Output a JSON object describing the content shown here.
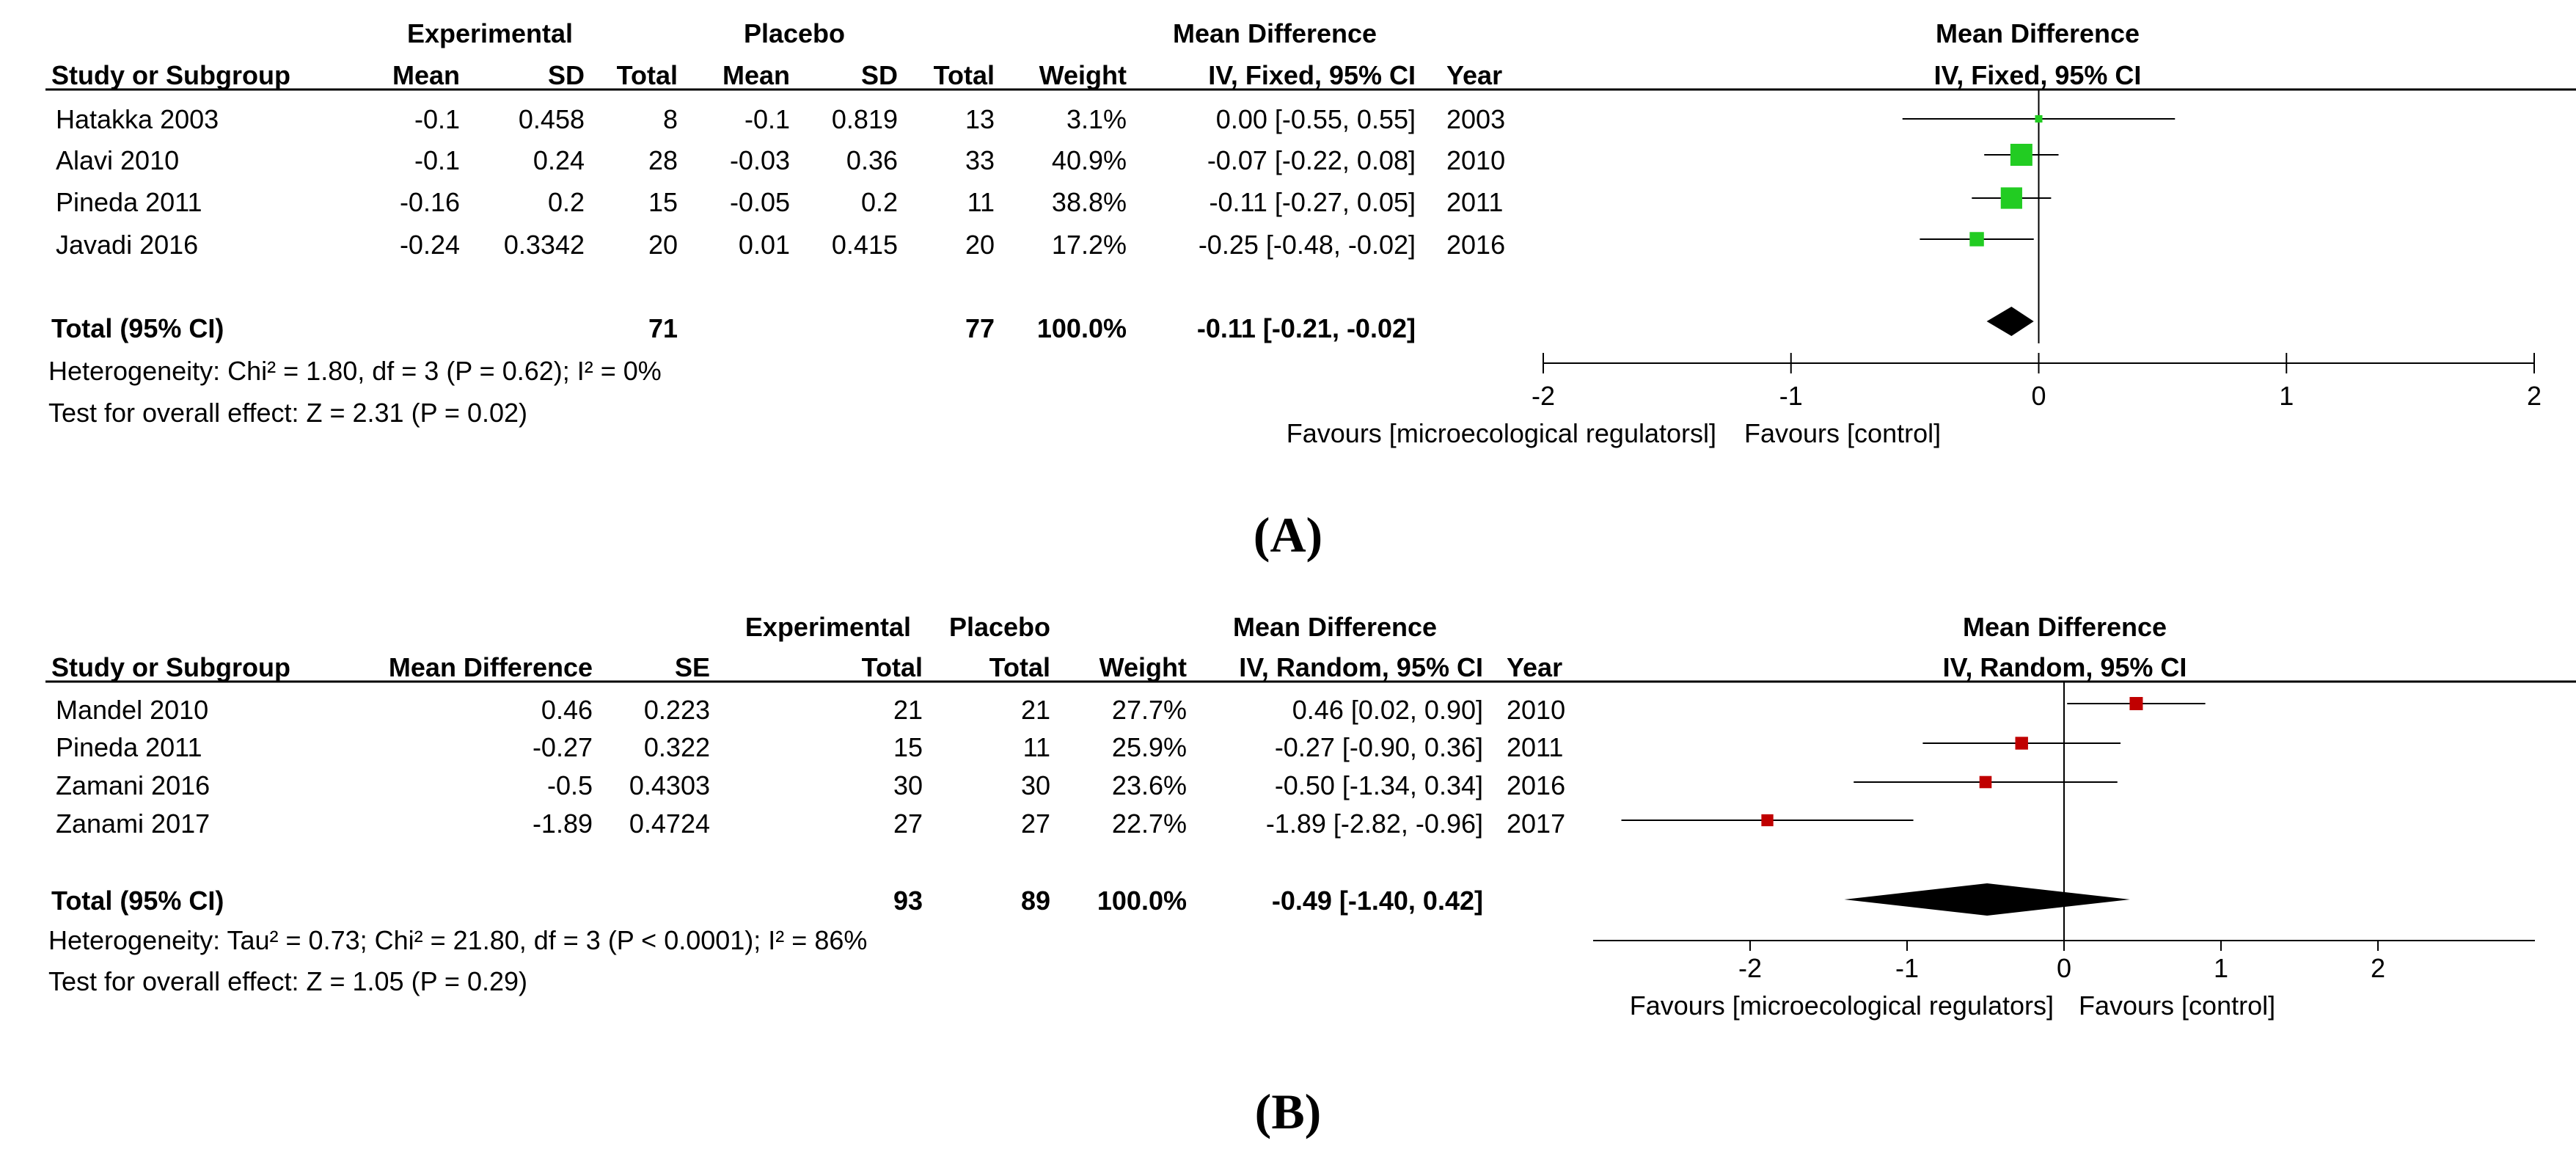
{
  "panel_a": {
    "label": "(A)",
    "group_header_experimental": "Experimental",
    "group_header_placebo": "Placebo",
    "group_header_md": "Mean Difference",
    "headers": [
      "Study or Subgroup",
      "Mean",
      "SD",
      "Total",
      "Mean",
      "SD",
      "Total",
      "Weight",
      "IV, Fixed, 95% CI",
      "Year"
    ],
    "rows": [
      {
        "study": "Hatakka 2003",
        "exp_mean": "-0.1",
        "exp_sd": "0.458",
        "exp_total": "8",
        "pla_mean": "-0.1",
        "pla_sd": "0.819",
        "pla_total": "13",
        "weight": "3.1%",
        "ci": "0.00 [-0.55, 0.55]",
        "year": "2003"
      },
      {
        "study": "Alavi 2010",
        "exp_mean": "-0.1",
        "exp_sd": "0.24",
        "exp_total": "28",
        "pla_mean": "-0.03",
        "pla_sd": "0.36",
        "pla_total": "33",
        "weight": "40.9%",
        "ci": "-0.07 [-0.22, 0.08]",
        "year": "2010"
      },
      {
        "study": "Pineda 2011",
        "exp_mean": "-0.16",
        "exp_sd": "0.2",
        "exp_total": "15",
        "pla_mean": "-0.05",
        "pla_sd": "0.2",
        "pla_total": "11",
        "weight": "38.8%",
        "ci": "-0.11 [-0.27, 0.05]",
        "year": "2011"
      },
      {
        "study": "Javadi 2016",
        "exp_mean": "-0.24",
        "exp_sd": "0.3342",
        "exp_total": "20",
        "pla_mean": "0.01",
        "pla_sd": "0.415",
        "pla_total": "20",
        "weight": "17.2%",
        "ci": "-0.25 [-0.48, -0.02]",
        "year": "2016"
      }
    ],
    "total": {
      "label": "Total (95% CI)",
      "exp_total": "71",
      "pla_total": "77",
      "weight": "100.0%",
      "ci": "-0.11 [-0.21, -0.02]"
    },
    "heterogeneity": "Heterogeneity: Chi² = 1.80, df = 3 (P = 0.62); I² = 0%",
    "overall_effect": "Test for overall effect: Z = 2.31 (P = 0.02)",
    "plot_title": "Mean Difference",
    "plot_subtitle": "IV, Fixed, 95% CI",
    "favours_left": "Favours [microecological regulatorsl]",
    "favours_right": "Favours [control]"
  },
  "panel_b": {
    "label": "(B)",
    "group_header_experimental": "Experimental",
    "group_header_placebo": "Placebo",
    "group_header_md": "Mean Difference",
    "headers": [
      "Study or Subgroup",
      "Mean Difference",
      "SE",
      "Total",
      "Total",
      "Weight",
      "IV, Random, 95% CI",
      "Year"
    ],
    "rows": [
      {
        "study": "Mandel 2010",
        "md": "0.46",
        "se": "0.223",
        "exp_total": "21",
        "pla_total": "21",
        "weight": "27.7%",
        "ci": "0.46 [0.02, 0.90]",
        "year": "2010"
      },
      {
        "study": "Pineda 2011",
        "md": "-0.27",
        "se": "0.322",
        "exp_total": "15",
        "pla_total": "11",
        "weight": "25.9%",
        "ci": "-0.27 [-0.90, 0.36]",
        "year": "2011"
      },
      {
        "study": "Zamani 2016",
        "md": "-0.5",
        "se": "0.4303",
        "exp_total": "30",
        "pla_total": "30",
        "weight": "23.6%",
        "ci": "-0.50 [-1.34, 0.34]",
        "year": "2016"
      },
      {
        "study": "Zanami 2017",
        "md": "-1.89",
        "se": "0.4724",
        "exp_total": "27",
        "pla_total": "27",
        "weight": "22.7%",
        "ci": "-1.89 [-2.82, -0.96]",
        "year": "2017"
      }
    ],
    "total": {
      "label": "Total (95% CI)",
      "exp_total": "93",
      "pla_total": "89",
      "weight": "100.0%",
      "ci": "-0.49 [-1.40, 0.42]"
    },
    "heterogeneity": "Heterogeneity: Tau² = 0.73; Chi² = 21.80, df = 3 (P < 0.0001); I² = 86%",
    "overall_effect": "Test for overall effect: Z = 1.05 (P = 0.29)",
    "plot_title": "Mean Difference",
    "plot_subtitle": "IV, Random, 95% CI",
    "favours_left": "Favours [microecological regulators]",
    "favours_right": "Favours [control]"
  },
  "chart_data": [
    {
      "type": "forest",
      "panel": "A",
      "title": "Mean Difference",
      "subtitle": "IV, Fixed, 95% CI",
      "xlim": [
        -2,
        2
      ],
      "ticks": [
        -2,
        -1,
        0,
        1,
        2
      ],
      "tick_labels": [
        "-2",
        "-1",
        "0",
        "1",
        "2"
      ],
      "marker_color": "#22cc22",
      "studies": [
        {
          "name": "Hatakka 2003",
          "md": 0.0,
          "lo": -0.55,
          "hi": 0.55,
          "weight": 3.1
        },
        {
          "name": "Alavi 2010",
          "md": -0.07,
          "lo": -0.22,
          "hi": 0.08,
          "weight": 40.9
        },
        {
          "name": "Pineda 2011",
          "md": -0.11,
          "lo": -0.27,
          "hi": 0.05,
          "weight": 38.8
        },
        {
          "name": "Javadi 2016",
          "md": -0.25,
          "lo": -0.48,
          "hi": -0.02,
          "weight": 17.2
        }
      ],
      "pooled": {
        "md": -0.11,
        "lo": -0.21,
        "hi": -0.02
      }
    },
    {
      "type": "forest",
      "panel": "B",
      "title": "Mean Difference",
      "subtitle": "IV, Random, 95% CI",
      "xlim": [
        -3,
        3
      ],
      "ticks": [
        -2,
        -1,
        0,
        1,
        2
      ],
      "tick_labels": [
        "-2",
        "-1",
        "0",
        "1",
        "2"
      ],
      "marker_color": "#c00000",
      "studies": [
        {
          "name": "Mandel 2010",
          "md": 0.46,
          "lo": 0.02,
          "hi": 0.9,
          "weight": 27.7
        },
        {
          "name": "Pineda 2011",
          "md": -0.27,
          "lo": -0.9,
          "hi": 0.36,
          "weight": 25.9
        },
        {
          "name": "Zamani 2016",
          "md": -0.5,
          "lo": -1.34,
          "hi": 0.34,
          "weight": 23.6
        },
        {
          "name": "Zanami 2017",
          "md": -1.89,
          "lo": -2.82,
          "hi": -0.96,
          "weight": 22.7
        }
      ],
      "pooled": {
        "md": -0.49,
        "lo": -1.4,
        "hi": 0.42
      }
    }
  ]
}
